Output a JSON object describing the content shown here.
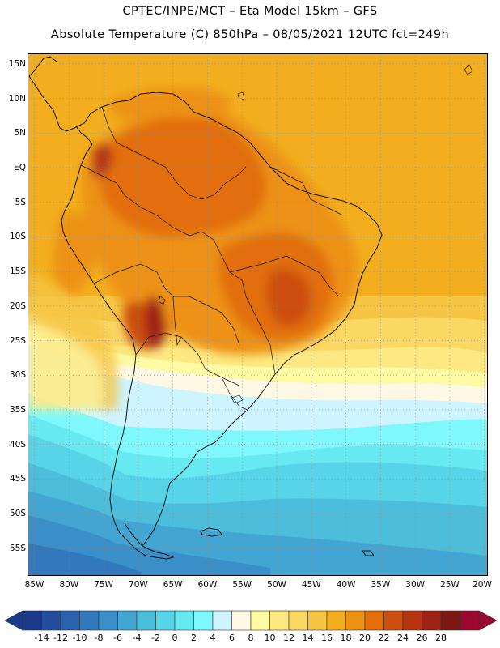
{
  "header": {
    "line1": "CPTEC/INPE/MCT –  Eta Model 15km – GFS",
    "line2": "Absolute Temperature (C) 850hPa – 08/05/2021 12UTC fct=249h"
  },
  "map": {
    "lon_range": [
      -86,
      -19.5
    ],
    "lat_range": [
      -59,
      16.5
    ],
    "lat_labels": [
      "15N",
      "10N",
      "5N",
      "EQ",
      "5S",
      "10S",
      "15S",
      "20S",
      "25S",
      "30S",
      "35S",
      "40S",
      "45S",
      "50S",
      "55S"
    ],
    "lat_values": [
      15,
      10,
      5,
      0,
      -5,
      -10,
      -15,
      -20,
      -25,
      -30,
      -35,
      -40,
      -45,
      -50,
      -55
    ],
    "lon_labels": [
      "85W",
      "80W",
      "75W",
      "70W",
      "65W",
      "60W",
      "55W",
      "50W",
      "45W",
      "40W",
      "35W",
      "30W",
      "25W",
      "20W"
    ],
    "lon_values": [
      -85,
      -80,
      -75,
      -70,
      -65,
      -60,
      -55,
      -50,
      -45,
      -40,
      -35,
      -30,
      -25,
      -20
    ]
  },
  "colorbar": {
    "labels": [
      "-14",
      "-12",
      "-10",
      "-8",
      "-6",
      "-4",
      "-2",
      "0",
      "2",
      "4",
      "6",
      "8",
      "10",
      "12",
      "14",
      "16",
      "18",
      "20",
      "22",
      "24",
      "26",
      "28"
    ],
    "colors": [
      "#1b3a8a",
      "#244c9c",
      "#2b62ad",
      "#3278bd",
      "#3a8fc9",
      "#43a6d2",
      "#4cbedc",
      "#58d4e8",
      "#67e9f2",
      "#7ef8fc",
      "#cdf4ff",
      "#fff8e4",
      "#fffaa4",
      "#fde882",
      "#fbd764",
      "#f6c544",
      "#f2ae1e",
      "#ed9212",
      "#e26e0c",
      "#cc4e10",
      "#b53512",
      "#9b2214",
      "#7e1812",
      "#9a0830"
    ],
    "low_color": "#1b3a8a",
    "high_color": "#9a0830"
  }
}
